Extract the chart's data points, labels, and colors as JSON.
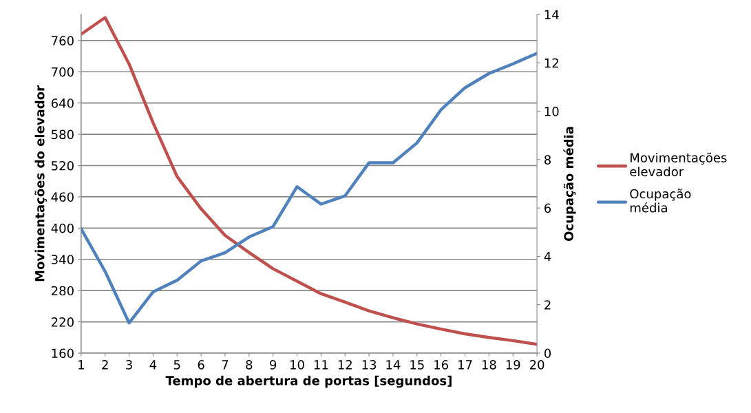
{
  "chart_data": {
    "type": "line",
    "xlabel": "Tempo de abertura de portas [segundos]",
    "ylabel": "Movimentações do elevador",
    "y2label": "Ocupação média",
    "categories": [
      "1",
      "2",
      "3",
      "4",
      "5",
      "6",
      "7",
      "8",
      "9",
      "10",
      "11",
      "12",
      "13",
      "14",
      "15",
      "16",
      "17",
      "18",
      "19",
      "20"
    ],
    "series": [
      {
        "name": "Movimentações elevador",
        "color": "#c0504d",
        "values": [
          772,
          804,
          715,
          602,
          499,
          437,
          386,
          353,
          322,
          298,
          274,
          258,
          241,
          228,
          216,
          206,
          197,
          190,
          184,
          177
        ]
      },
      {
        "name": "Ocupação média",
        "color": "#4f81bd",
        "axis": "y2",
        "values": [
          5.14,
          3.38,
          1.25,
          2.53,
          3.01,
          3.81,
          4.15,
          4.8,
          5.23,
          6.88,
          6.16,
          6.5,
          7.87,
          7.87,
          8.69,
          10.06,
          10.97,
          11.56,
          11.96,
          12.39
        ]
      }
    ],
    "ylim": [
      160,
      810
    ],
    "yticks": [
      160,
      220,
      280,
      340,
      400,
      460,
      520,
      580,
      640,
      700,
      760
    ],
    "y2lim": [
      0,
      14
    ],
    "y2ticks": [
      0,
      2,
      4,
      6,
      8,
      10,
      12,
      14
    ],
    "grid": "y",
    "legend": "right",
    "marker": "none",
    "line_style": "solid"
  }
}
